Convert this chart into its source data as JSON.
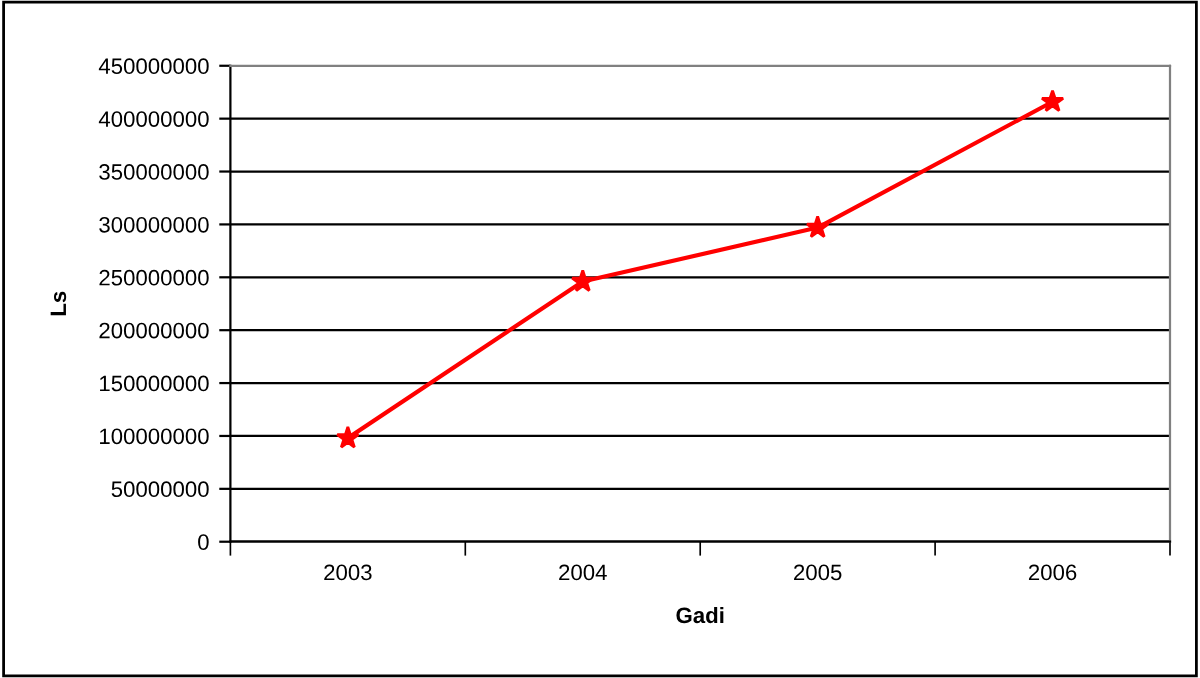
{
  "chart_data": {
    "type": "line",
    "xlabel": "Gadi",
    "ylabel": "Ls",
    "categories": [
      "2003",
      "2004",
      "2005",
      "2006"
    ],
    "series": [
      {
        "color": "#ff0000",
        "values": [
          98000000,
          246000000,
          297000000,
          416000000
        ]
      }
    ],
    "ylim": [
      0,
      450000000
    ],
    "yticks": [
      0,
      50000000,
      100000000,
      150000000,
      200000000,
      250000000,
      300000000,
      350000000,
      400000000,
      450000000
    ],
    "grid": "y",
    "marker": "star",
    "line_style": "solid",
    "legend": false
  }
}
